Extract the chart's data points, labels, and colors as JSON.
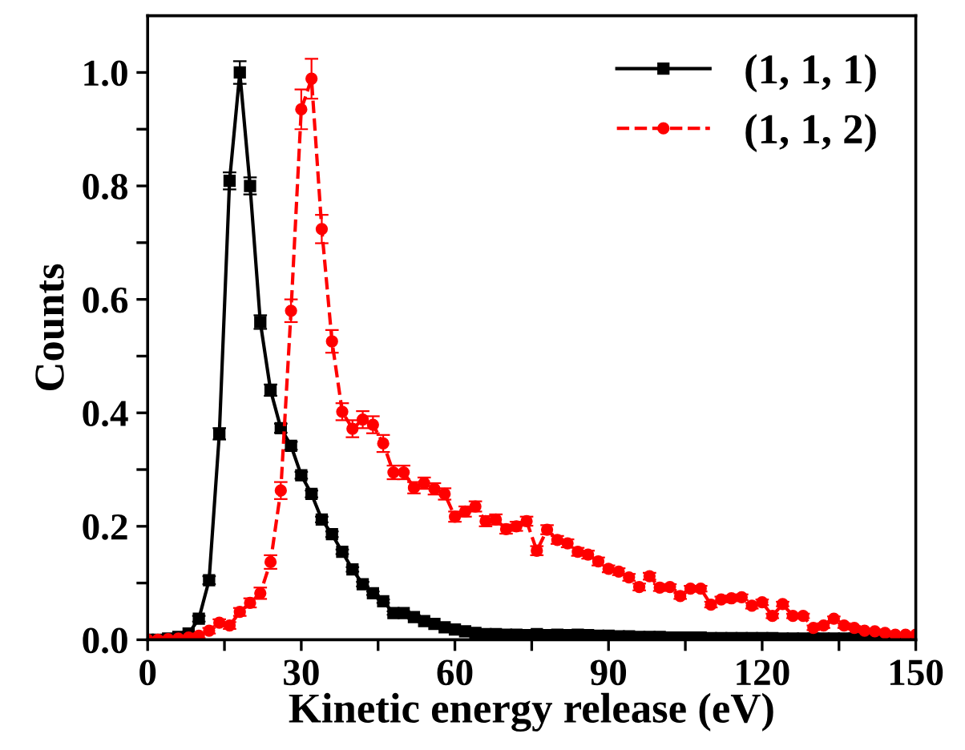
{
  "chart_data": {
    "type": "line",
    "xlabel": "Kinetic energy release (eV)",
    "ylabel": "Counts",
    "x": [
      0,
      2,
      4,
      6,
      8,
      10,
      12,
      14,
      16,
      18,
      20,
      22,
      24,
      26,
      28,
      30,
      32,
      34,
      36,
      38,
      40,
      42,
      44,
      46,
      48,
      50,
      52,
      54,
      56,
      58,
      60,
      62,
      64,
      66,
      68,
      70,
      72,
      74,
      76,
      78,
      80,
      82,
      84,
      86,
      88,
      90,
      92,
      94,
      96,
      98,
      100,
      102,
      104,
      106,
      108,
      110,
      112,
      114,
      116,
      118,
      120,
      122,
      124,
      126,
      128,
      130,
      132,
      134,
      136,
      138,
      140,
      142,
      144,
      146,
      148,
      150
    ],
    "series": [
      {
        "name": "(1, 1, 1)",
        "color": "#000000",
        "marker": "square",
        "line_style": "solid",
        "values": [
          0,
          0,
          0.002,
          0.005,
          0.011,
          0.037,
          0.105,
          0.363,
          0.809,
          1.0,
          0.8,
          0.56,
          0.44,
          0.373,
          0.342,
          0.29,
          0.257,
          0.212,
          0.186,
          0.155,
          0.124,
          0.098,
          0.082,
          0.068,
          0.047,
          0.047,
          0.04,
          0.033,
          0.028,
          0.022,
          0.018,
          0.015,
          0.012,
          0.01,
          0.01,
          0.009,
          0.009,
          0.008,
          0.01,
          0.008,
          0.009,
          0.008,
          0.009,
          0.008,
          0.007,
          0.007,
          0.006,
          0.006,
          0.005,
          0.005,
          0.005,
          0.004,
          0.004,
          0.004,
          0.004,
          0.003,
          0.003,
          0.003,
          0.003,
          0.003,
          0.003,
          0.003,
          0.002,
          0.002,
          0.002,
          0.002,
          0.002,
          0.002,
          0.002,
          0.002,
          0.002,
          0.002,
          0.002,
          0.002,
          0.002,
          0.002
        ],
        "errors": [
          0,
          0,
          0.001,
          0.002,
          0.003,
          0.005,
          0.007,
          0.01,
          0.015,
          0.02,
          0.015,
          0.012,
          0.01,
          0.008,
          0.007,
          0.006,
          0.006,
          0.005,
          0.005,
          0.004,
          0.004,
          0.004,
          0.003,
          0.003,
          0.003,
          0.003,
          0.003,
          0.002,
          0.002,
          0.002,
          0.002,
          0.002,
          0.002,
          0.002,
          0.002,
          0.002,
          0.002,
          0.002,
          0.002,
          0.002,
          0.002,
          0.002,
          0.002,
          0.002,
          0.002,
          0.002,
          0.002,
          0.002,
          0.002,
          0.002,
          0.002,
          0.002,
          0.002,
          0.002,
          0.002,
          0.001,
          0.001,
          0.001,
          0.001,
          0.001,
          0.001,
          0.001,
          0.001,
          0.001,
          0.001,
          0.001,
          0.001,
          0.001,
          0.001,
          0.001,
          0.001,
          0.001,
          0.001,
          0.001,
          0.001,
          0.001
        ]
      },
      {
        "name": "(1, 1, 2)",
        "color": "#ff0000",
        "marker": "circle",
        "line_style": "dashed",
        "values": [
          0,
          0,
          0.001,
          0.002,
          0.004,
          0.007,
          0.016,
          0.03,
          0.025,
          0.049,
          0.065,
          0.082,
          0.137,
          0.263,
          0.58,
          0.935,
          0.989,
          0.724,
          0.526,
          0.402,
          0.372,
          0.388,
          0.379,
          0.346,
          0.295,
          0.295,
          0.268,
          0.276,
          0.266,
          0.257,
          0.217,
          0.226,
          0.235,
          0.209,
          0.212,
          0.195,
          0.2,
          0.209,
          0.157,
          0.194,
          0.176,
          0.17,
          0.155,
          0.15,
          0.138,
          0.125,
          0.12,
          0.11,
          0.093,
          0.112,
          0.092,
          0.093,
          0.077,
          0.09,
          0.09,
          0.062,
          0.071,
          0.073,
          0.075,
          0.06,
          0.066,
          0.042,
          0.063,
          0.042,
          0.042,
          0.021,
          0.025,
          0.037,
          0.025,
          0.021,
          0.016,
          0.015,
          0.012,
          0.009,
          0.009,
          0.009
        ],
        "errors": [
          0,
          0,
          0.001,
          0.002,
          0.003,
          0.004,
          0.005,
          0.006,
          0.006,
          0.007,
          0.008,
          0.01,
          0.012,
          0.015,
          0.02,
          0.035,
          0.035,
          0.025,
          0.02,
          0.015,
          0.015,
          0.015,
          0.015,
          0.015,
          0.012,
          0.012,
          0.01,
          0.01,
          0.01,
          0.01,
          0.009,
          0.009,
          0.009,
          0.009,
          0.009,
          0.008,
          0.008,
          0.008,
          0.008,
          0.008,
          0.007,
          0.007,
          0.007,
          0.007,
          0.007,
          0.006,
          0.006,
          0.006,
          0.006,
          0.006,
          0.006,
          0.005,
          0.005,
          0.005,
          0.005,
          0.005,
          0.005,
          0.005,
          0.005,
          0.005,
          0.005,
          0.004,
          0.004,
          0.004,
          0.004,
          0.004,
          0.004,
          0.004,
          0.004,
          0.003,
          0.003,
          0.003,
          0.003,
          0.003,
          0.003,
          0.003
        ]
      }
    ],
    "xlim": [
      0,
      150
    ],
    "ylim": [
      0,
      1.1
    ],
    "xticks": [
      0,
      {
        "value": 15,
        "label": null
      },
      30,
      {
        "value": 45,
        "label": null
      },
      60,
      {
        "value": 75,
        "label": null
      },
      90,
      {
        "value": 105,
        "label": null
      },
      120,
      {
        "value": 135,
        "label": null
      },
      150
    ],
    "yticks": [
      {
        "value": 0,
        "label": "0.0"
      },
      {
        "value": 0.1,
        "label": null
      },
      {
        "value": 0.2,
        "label": "0.2"
      },
      {
        "value": 0.3,
        "label": null
      },
      {
        "value": 0.4,
        "label": "0.4"
      },
      {
        "value": 0.5,
        "label": null
      },
      {
        "value": 0.6,
        "label": "0.6"
      },
      {
        "value": 0.7,
        "label": null
      },
      {
        "value": 0.8,
        "label": "0.8"
      },
      {
        "value": 0.9,
        "label": null
      },
      {
        "value": 1.0,
        "label": "1.0"
      }
    ],
    "legend": "top right",
    "grid": false
  }
}
